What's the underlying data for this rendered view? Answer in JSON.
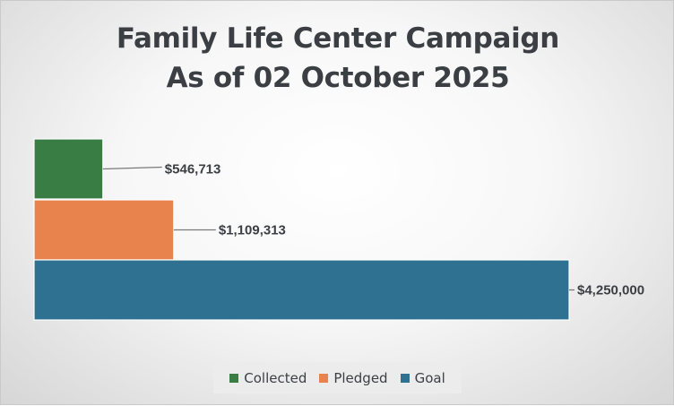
{
  "chart_data": {
    "type": "bar",
    "orientation": "horizontal",
    "title_line1": "Family Life Center Campaign",
    "title_line2": "As of 02 October 2025",
    "categories": [
      "Collected",
      "Pledged",
      "Goal"
    ],
    "values": [
      546713,
      1109313,
      4250000
    ],
    "value_labels": [
      "$546,713",
      "$1,109,313",
      "$4,250,000"
    ],
    "colors": [
      "#3a7d44",
      "#e8834e",
      "#2e7191"
    ],
    "xlim": [
      0,
      4250000
    ],
    "xlabel": "",
    "ylabel": "",
    "grid": false,
    "legend_position": "bottom"
  }
}
